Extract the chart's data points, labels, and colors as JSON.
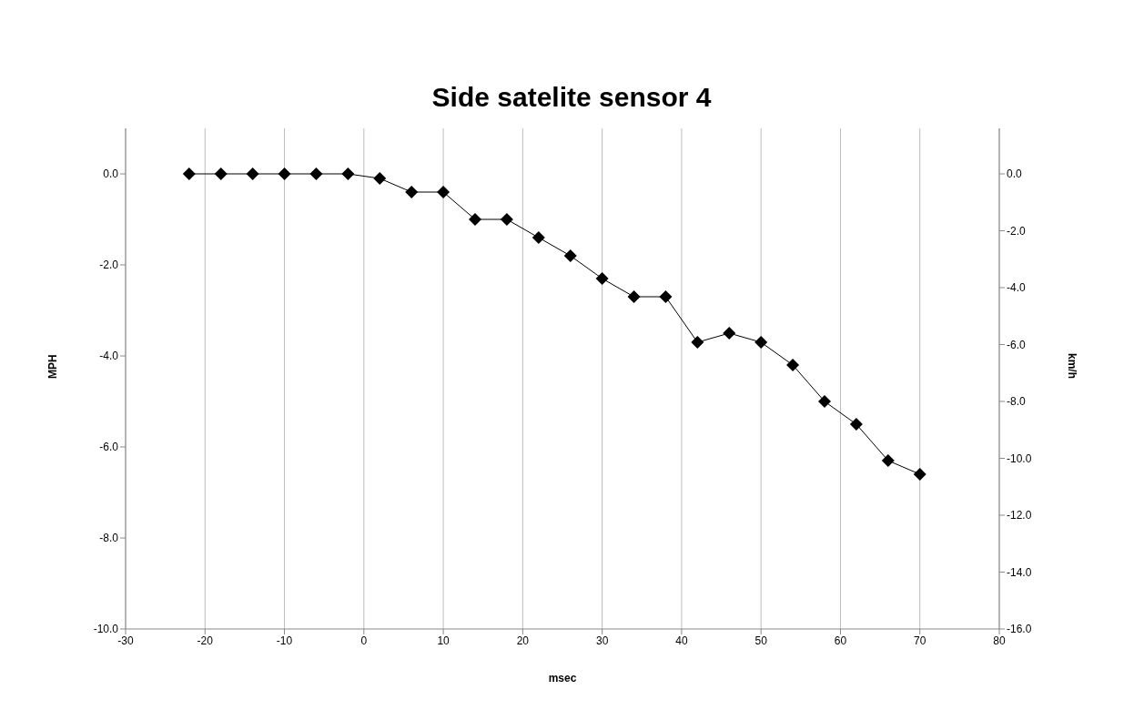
{
  "chart_data": {
    "type": "line",
    "title": "Side satelite sensor 4",
    "xlabel": "msec",
    "ylabel": "MPH",
    "y2label": "km/h",
    "x": [
      -22,
      -18,
      -14,
      -10,
      -6,
      -2,
      2,
      6,
      10,
      14,
      18,
      22,
      26,
      30,
      34,
      38,
      42,
      46,
      50,
      54,
      58,
      62,
      66,
      70
    ],
    "series": [
      {
        "color": "#000000",
        "values": [
          0.0,
          0.0,
          0.0,
          0.0,
          0.0,
          0.0,
          -0.1,
          -0.4,
          -0.4,
          -1.0,
          -1.0,
          -1.4,
          -1.8,
          -2.3,
          -2.7,
          -2.7,
          -3.7,
          -3.5,
          -3.7,
          -4.2,
          -5.0,
          -5.5,
          -6.3,
          -6.6
        ]
      }
    ],
    "xlim": [
      -30,
      80
    ],
    "xticks": [
      -30,
      -20,
      -10,
      0,
      10,
      20,
      30,
      40,
      50,
      60,
      70,
      80
    ],
    "ylim": [
      -10,
      1.0
    ],
    "yticks": [
      {
        "value": -10,
        "label": "-10.0"
      },
      {
        "value": -8,
        "label": "-8.0"
      },
      {
        "value": -6,
        "label": "-6.0"
      },
      {
        "value": -4,
        "label": "-4.0"
      },
      {
        "value": -2,
        "label": "-2.0"
      },
      {
        "value": 0,
        "label": "0.0"
      }
    ],
    "y2lim": [
      -16,
      1.6
    ],
    "y2ticks": [
      {
        "value": -16,
        "label": "-16.0"
      },
      {
        "value": -14,
        "label": "-14.0"
      },
      {
        "value": -12,
        "label": "-12.0"
      },
      {
        "value": -10,
        "label": "-10.0"
      },
      {
        "value": -8,
        "label": "-8.0"
      },
      {
        "value": -6,
        "label": "-6.0"
      },
      {
        "value": -4,
        "label": "-4.0"
      },
      {
        "value": -2,
        "label": "-2.0"
      },
      {
        "value": 0,
        "label": "0.0"
      }
    ],
    "grid": true,
    "marker": "diamond",
    "line_style": "solid",
    "legend": false
  }
}
